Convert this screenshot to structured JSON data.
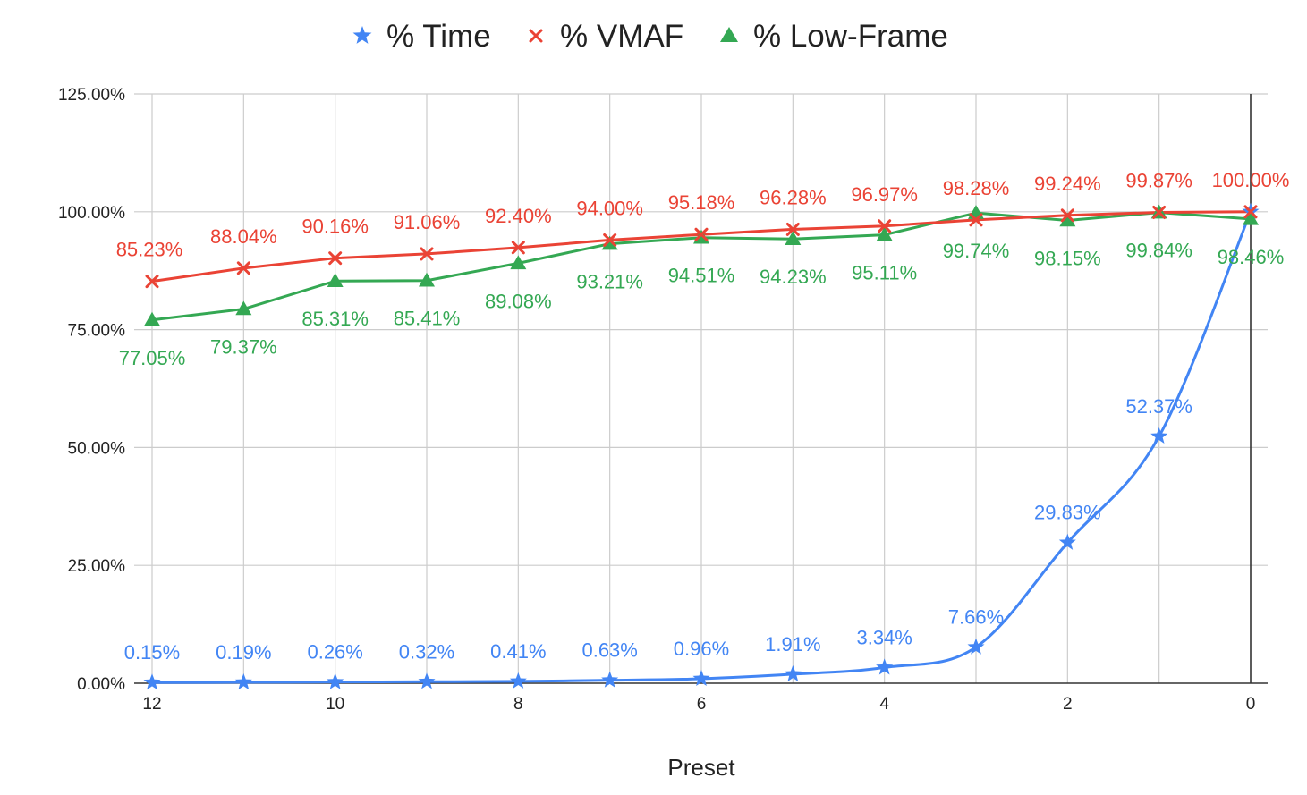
{
  "chart_data": {
    "type": "line",
    "xlabel": "Preset",
    "ylabel": "",
    "ylim": [
      0,
      125
    ],
    "y_ticks": [
      "0.00%",
      "25.00%",
      "50.00%",
      "75.00%",
      "100.00%",
      "125.00%"
    ],
    "x": [
      12,
      11,
      10,
      9,
      8,
      7,
      6,
      5,
      4,
      3,
      2,
      1,
      0
    ],
    "x_tick_labels": [
      "12",
      "10",
      "8",
      "6",
      "4",
      "2",
      "0"
    ],
    "grid": true,
    "legend_position": "top",
    "series": [
      {
        "name": "% Time",
        "color": "#4285f4",
        "marker": "star",
        "values": [
          0.15,
          0.19,
          0.26,
          0.32,
          0.41,
          0.63,
          0.96,
          1.91,
          3.34,
          7.66,
          29.83,
          52.37,
          100.0
        ],
        "labels": [
          "0.15%",
          "0.19%",
          "0.26%",
          "0.32%",
          "0.41%",
          "0.63%",
          "0.96%",
          "1.91%",
          "3.34%",
          "7.66%",
          "29.83%",
          "52.37%",
          ""
        ]
      },
      {
        "name": "% VMAF",
        "color": "#ea4335",
        "marker": "x",
        "values": [
          85.23,
          88.04,
          90.16,
          91.06,
          92.4,
          94.0,
          95.18,
          96.28,
          96.97,
          98.28,
          99.24,
          99.87,
          100.0
        ],
        "labels": [
          "85.23%",
          "88.04%",
          "90.16%",
          "91.06%",
          "92.40%",
          "94.00%",
          "95.18%",
          "96.28%",
          "96.97%",
          "98.28%",
          "99.24%",
          "99.87%",
          "100.00%"
        ]
      },
      {
        "name": "% Low-Frame",
        "color": "#34a853",
        "marker": "triangle",
        "values": [
          77.05,
          79.37,
          85.31,
          85.41,
          89.08,
          93.21,
          94.51,
          94.23,
          95.11,
          99.74,
          98.15,
          99.84,
          98.46
        ],
        "labels": [
          "77.05%",
          "79.37%",
          "85.31%",
          "85.41%",
          "89.08%",
          "93.21%",
          "94.51%",
          "94.23%",
          "95.11%",
          "99.74%",
          "98.15%",
          "99.84%",
          "98.46%"
        ]
      }
    ]
  }
}
